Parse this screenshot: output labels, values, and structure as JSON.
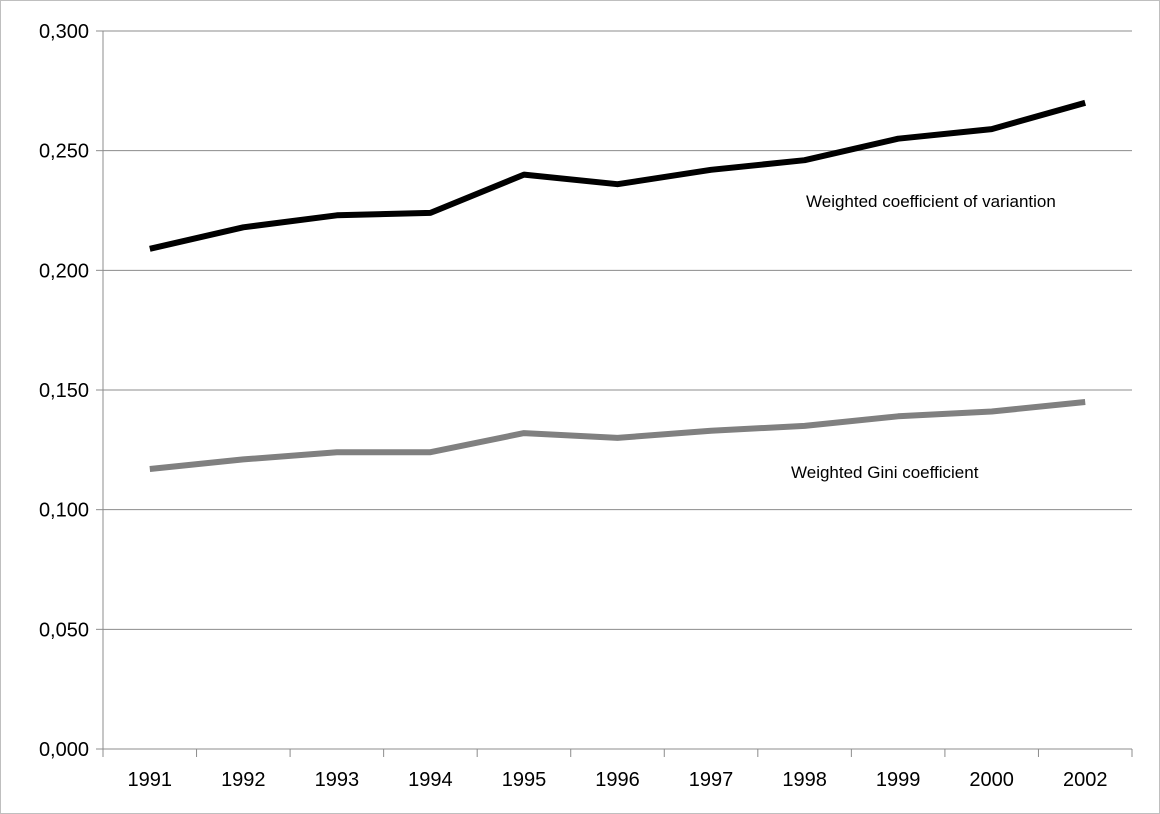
{
  "chart_data": {
    "type": "line",
    "title": "",
    "xlabel": "",
    "ylabel": "",
    "categories": [
      "1991",
      "1992",
      "1993",
      "1994",
      "1995",
      "1996",
      "1997",
      "1998",
      "1999",
      "2000",
      "2002"
    ],
    "ylim": [
      0,
      0.3
    ],
    "y_ticks": [
      "0,000",
      "0,050",
      "0,100",
      "0,150",
      "0,200",
      "0,250",
      "0,300"
    ],
    "grid": true,
    "legend": "none",
    "series": [
      {
        "name": "Weighted coefficient of variantion",
        "color": "#000000",
        "values": [
          0.209,
          0.218,
          0.223,
          0.224,
          0.24,
          0.236,
          0.242,
          0.246,
          0.255,
          0.259,
          0.27
        ]
      },
      {
        "name": "Weighted Gini coefficient",
        "color": "#808080",
        "values": [
          0.117,
          0.121,
          0.124,
          0.124,
          0.132,
          0.13,
          0.133,
          0.135,
          0.139,
          0.141,
          0.145
        ]
      }
    ]
  }
}
